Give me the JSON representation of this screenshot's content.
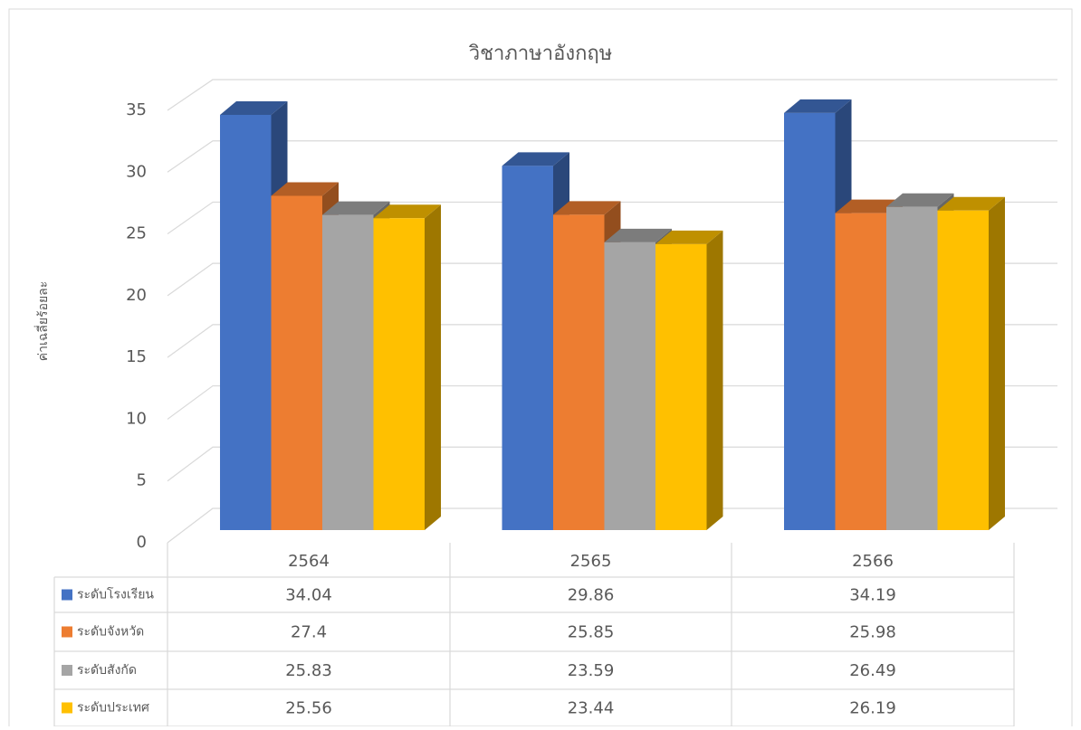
{
  "chart_data": {
    "type": "bar3d",
    "title": "วิชาภาษาอังกฤษ",
    "y_label": "ค่าเฉลี่ยร้อยละ",
    "categories": [
      "2564",
      "2565",
      "2566"
    ],
    "series": [
      {
        "name": "ระดับโรงเรียน",
        "color": "#4472c4",
        "values": [
          34.04,
          29.86,
          34.19
        ]
      },
      {
        "name": "ระดับจังหวัด",
        "color": "#ed7d31",
        "values": [
          27.4,
          25.85,
          25.98
        ]
      },
      {
        "name": "ระดับสังกัด",
        "color": "#a5a5a5",
        "values": [
          25.83,
          23.59,
          26.49
        ]
      },
      {
        "name": "ระดับประเทศ",
        "color": "#ffc000",
        "values": [
          25.56,
          23.44,
          26.19
        ]
      }
    ],
    "ylim": [
      0,
      35
    ],
    "yticks": [
      0,
      5,
      10,
      15,
      20,
      25,
      30,
      35
    ],
    "grid": true,
    "data_table": true
  }
}
